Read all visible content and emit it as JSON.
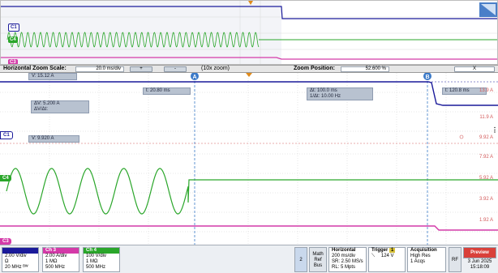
{
  "colors": {
    "c1": "#1a1a9a",
    "c2": "#d43aa8",
    "c3": "#7a8a2a",
    "c4": "#2aa62a",
    "trigger": "#e08a1a",
    "cursor": "#3b7ac8",
    "readout_bg": "#b8c2d0"
  },
  "overview": {
    "tags": [
      "C1",
      "C4",
      "C3"
    ],
    "corner_icon": "zoom-window-icon"
  },
  "zoom_bar": {
    "scale_label": "Horizontal Zoom Scale:",
    "scale_value": "20.0 ms/div",
    "plus": "+",
    "minus": "-",
    "zoom_text": "(10x zoom)",
    "position_label": "Zoom Position:",
    "position_value": "52.600 %",
    "close": "X"
  },
  "readouts": {
    "v_top": "V:  15.12 A",
    "t_left": "t:  20.80 ms",
    "delta_t": "Δt:   100.0 ms",
    "inv_delta_t": "1/Δt:  10.00 Hz",
    "t_right": "t:  120.8 ms",
    "delta_v": "ΔV:     5.200 A",
    "dv_dt": "ΔV/Δt:",
    "v_bottom": "V:  9.920 A"
  },
  "cursor_labels": [
    "A",
    "B"
  ],
  "y_labels": [
    "13.9 A",
    "11.9 A",
    "9.92 A",
    "7.92 A",
    "5.92 A",
    "3.92 A",
    "1.92 A"
  ],
  "channel_tags": [
    "C1",
    "C4",
    "C3"
  ],
  "channels": [
    {
      "name": "",
      "scale": "2.00 V/div",
      "line2": "Ω",
      "line3": "20 MHz ᴮᵂ"
    },
    {
      "name": "Ch 3",
      "scale": "2.00 A/div",
      "line2": "1 MΩ",
      "line3": "500 MHz"
    },
    {
      "name": "Ch 4",
      "scale": "100 V/div",
      "line2": "1 MΩ",
      "line3": "500 MHz"
    }
  ],
  "buttons": {
    "b2": "2",
    "math": "Math",
    "ref": "Ref",
    "bus": "Bus",
    "rf": "RF",
    "preview": "Preview"
  },
  "horizontal": {
    "title": "Horizontal",
    "line1": "200 ms/div",
    "line2": "SR: 2.50 MS/s",
    "line3": "RL: 5 Mpts"
  },
  "trigger": {
    "title": "Trigger",
    "badge": "1",
    "slope": "⟍",
    "level": "124 V"
  },
  "acquisition": {
    "title": "Acquisition",
    "line1": "High Res",
    "line2": "1 Acqs"
  },
  "datetime": {
    "date": "3 Jun 2025",
    "time": "15:18:09"
  }
}
